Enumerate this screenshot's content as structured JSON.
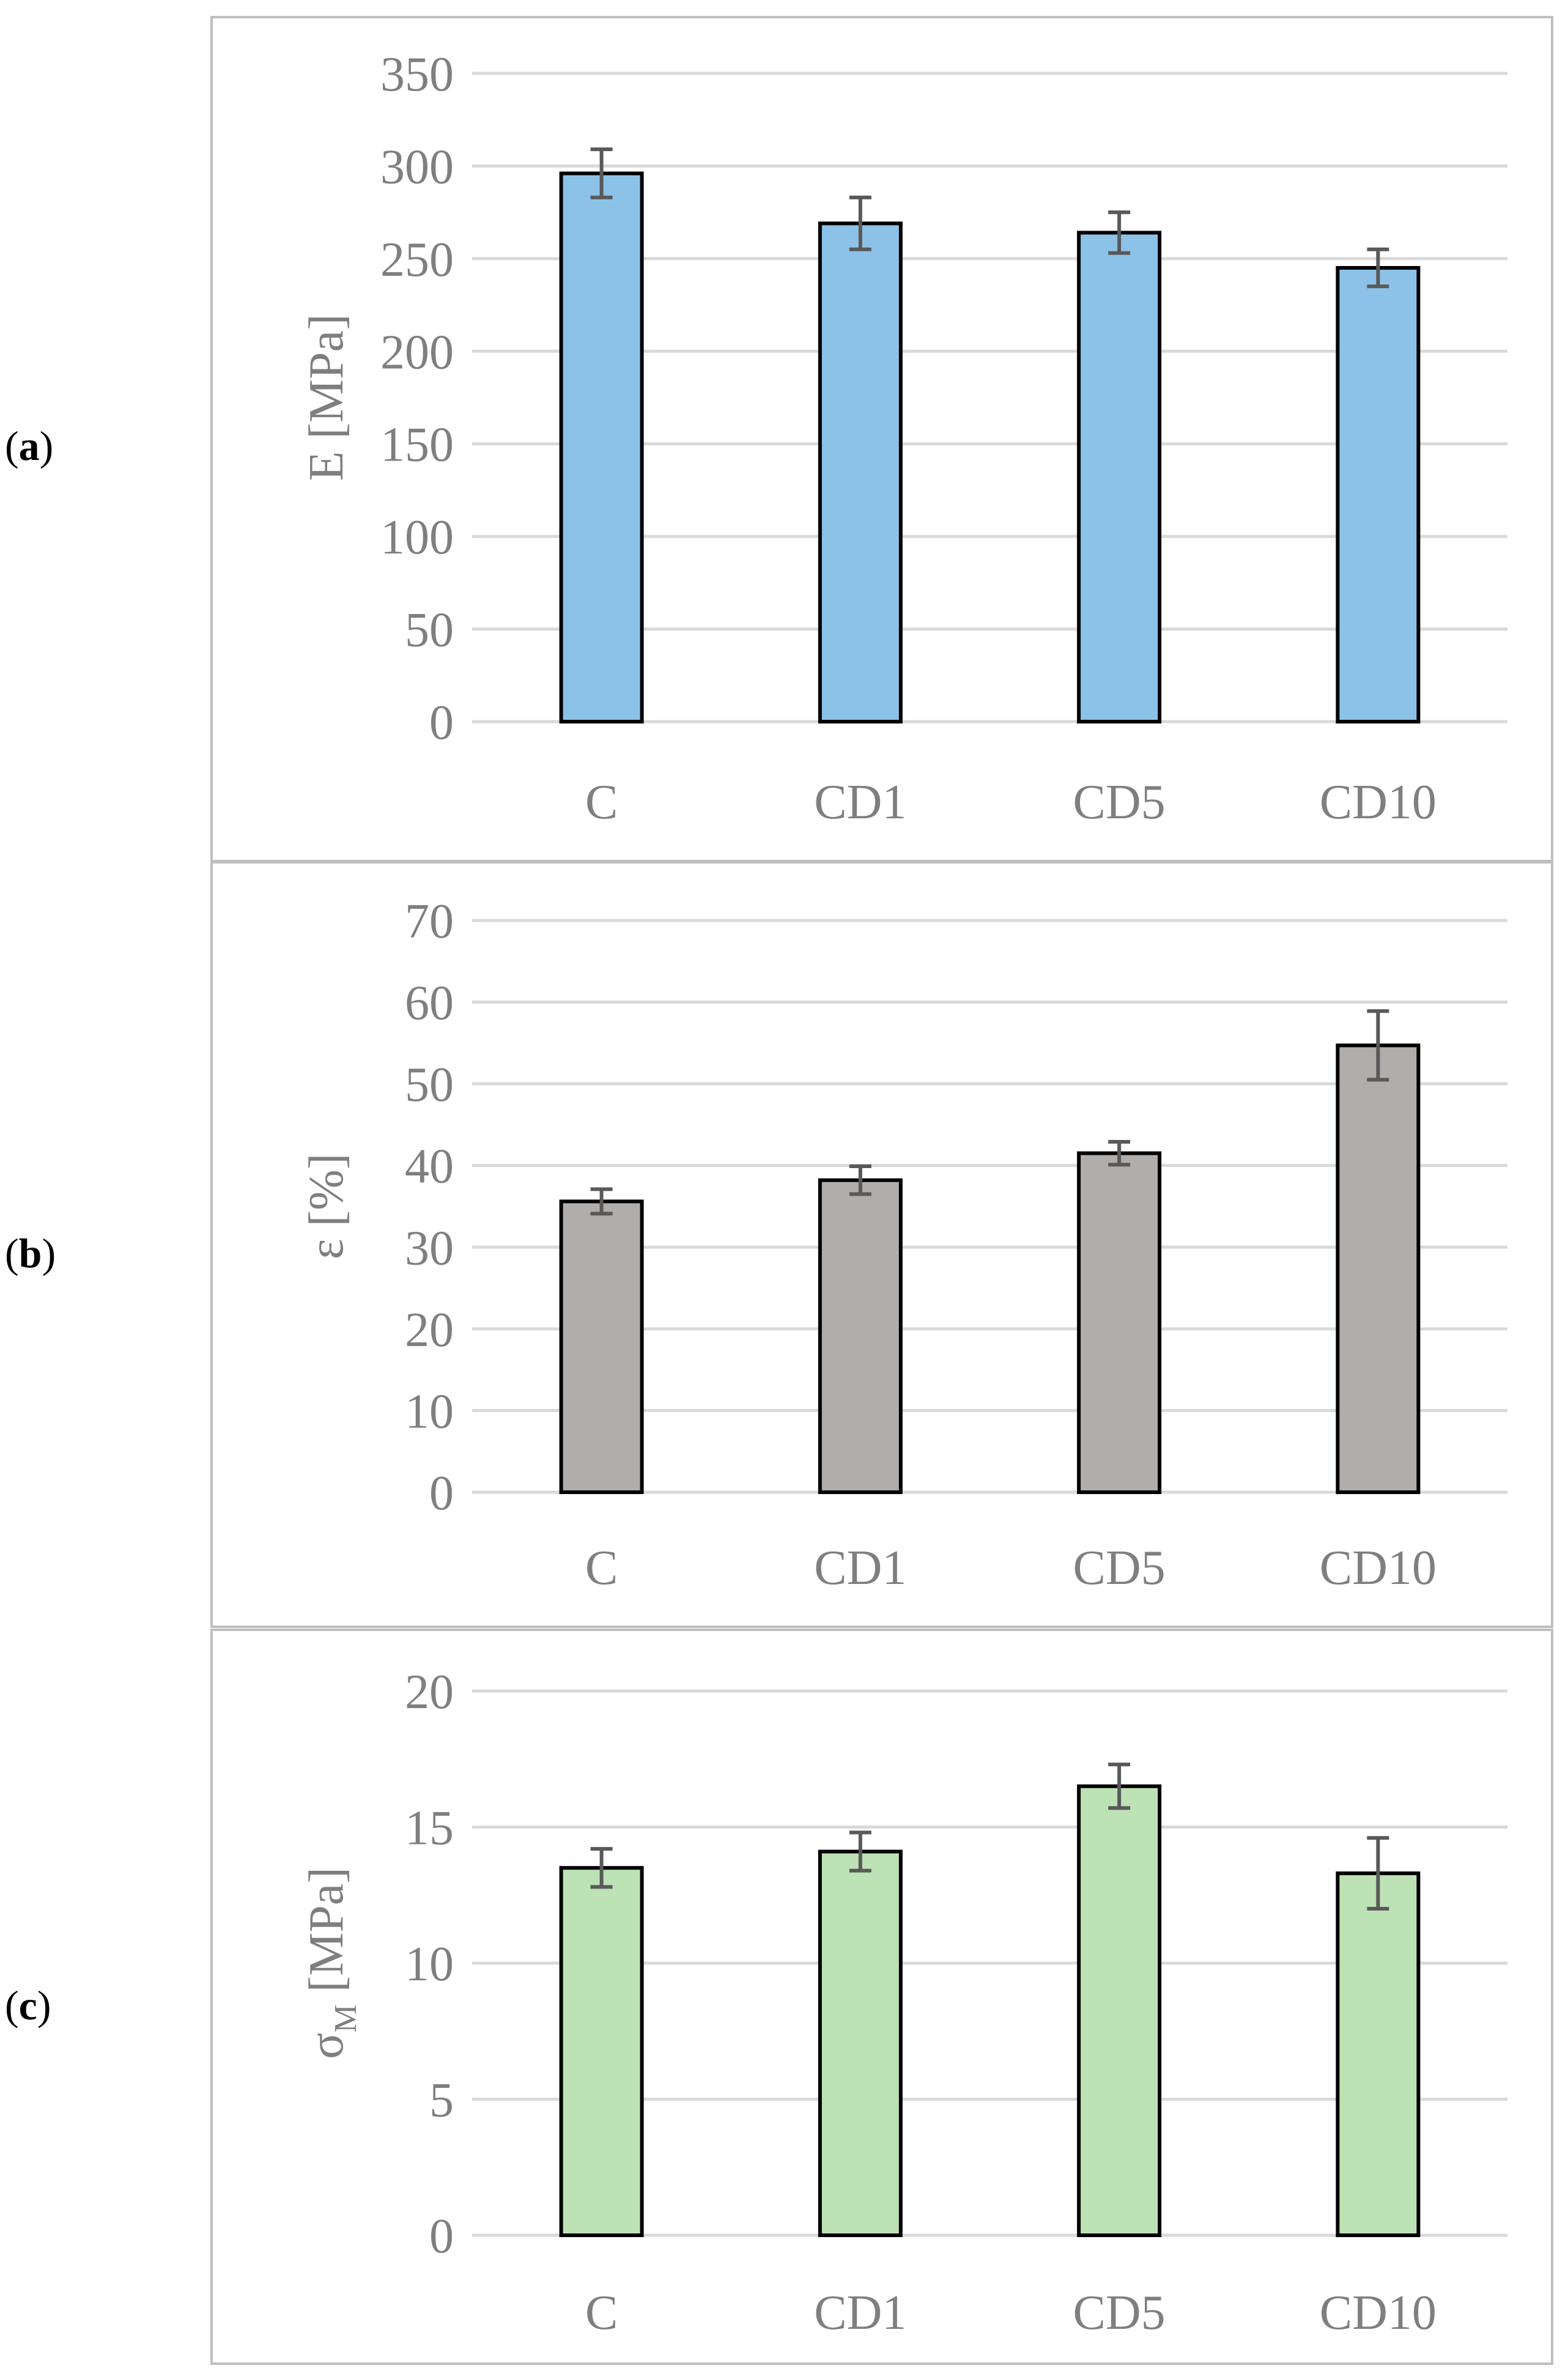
{
  "panels": [
    {
      "open": "(",
      "letter": "a",
      "close": ")"
    },
    {
      "open": "(",
      "letter": "b",
      "close": ")"
    },
    {
      "open": "(",
      "letter": "c",
      "close": ")"
    }
  ],
  "colors": {
    "panel_a": "#8cc2e8",
    "panel_b": "#b0adab",
    "panel_c": "#bde2b5",
    "grid": "#d9d9d9",
    "frame": "#bfbfbf",
    "text": "#7f7f7f",
    "error_bar": "#595959"
  },
  "chart_data": [
    {
      "type": "bar",
      "title": "",
      "categories": [
        "C",
        "CD1",
        "CD5",
        "CD10"
      ],
      "values": [
        296,
        269,
        264,
        245
      ],
      "errors": [
        13,
        14,
        11,
        10
      ],
      "ylabel": "E [MPa]",
      "ylabel_sub": "",
      "ylabel_after": "",
      "xlabel": "",
      "ylim": [
        0,
        350
      ],
      "yticks": [
        0,
        50,
        100,
        150,
        200,
        250,
        300,
        350
      ],
      "grid": true
    },
    {
      "type": "bar",
      "title": "",
      "categories": [
        "C",
        "CD1",
        "CD5",
        "CD10"
      ],
      "values": [
        35.6,
        38.2,
        41.5,
        54.7
      ],
      "errors": [
        1.5,
        1.7,
        1.4,
        4.2
      ],
      "ylabel": "ε [%]",
      "ylabel_sub": "",
      "ylabel_after": "",
      "xlabel": "",
      "ylim": [
        0,
        70
      ],
      "yticks": [
        0,
        10,
        20,
        30,
        40,
        50,
        60,
        70
      ],
      "grid": true
    },
    {
      "type": "bar",
      "title": "",
      "categories": [
        "C",
        "CD1",
        "CD5",
        "CD10"
      ],
      "values": [
        13.5,
        14.1,
        16.5,
        13.3
      ],
      "errors": [
        0.7,
        0.7,
        0.8,
        1.3
      ],
      "ylabel": "σ",
      "ylabel_sub": "M",
      "ylabel_after": " [MPa]",
      "xlabel": "",
      "ylim": [
        0,
        20
      ],
      "yticks": [
        0,
        5,
        10,
        15,
        20
      ],
      "grid": true
    }
  ]
}
